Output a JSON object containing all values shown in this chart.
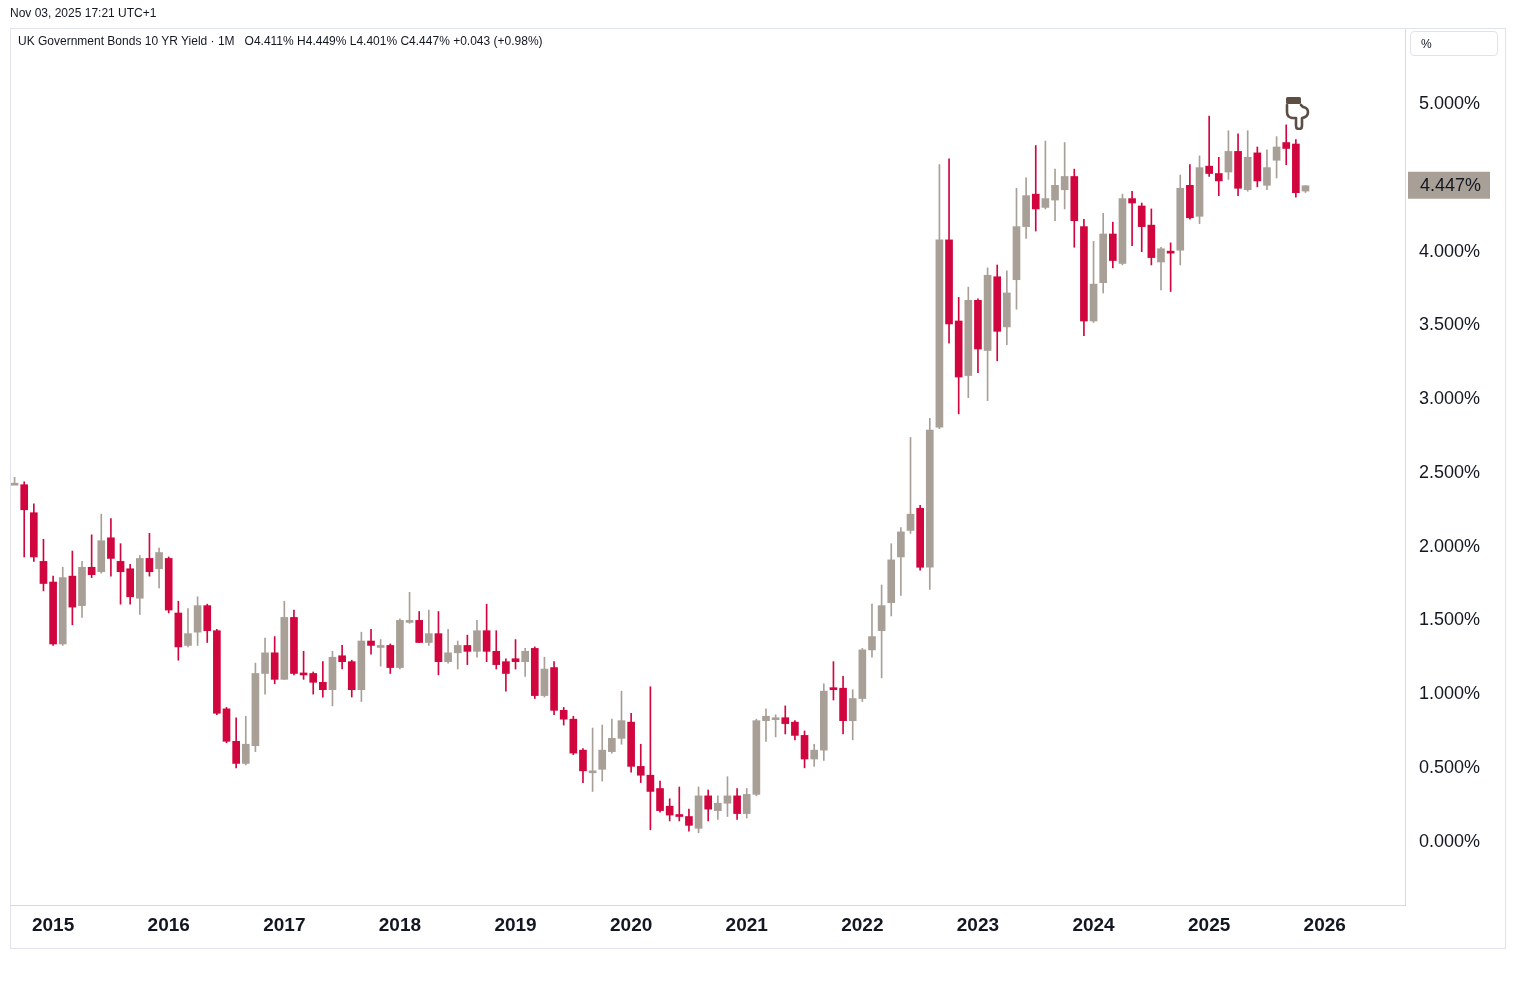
{
  "chart_data": {
    "type": "candlestick",
    "title": "UK Government Bonds 10 YR Yield · 1M",
    "ylabel": "%",
    "annotations": [
      "Nov 03, 2025 17:21 UTC+1",
      "O4.411% H4.449% L4.401% C4.447% +0.043 (+0.98%)",
      "4.447%"
    ],
    "x": [
      "2014-09",
      "2014-10",
      "2014-11",
      "2014-12",
      "2015-01",
      "2015-02",
      "2015-03",
      "2015-04",
      "2015-05",
      "2015-06",
      "2015-07",
      "2015-08",
      "2015-09",
      "2015-10",
      "2015-11",
      "2015-12",
      "2016-01",
      "2016-02",
      "2016-03",
      "2016-04",
      "2016-05",
      "2016-06",
      "2016-07",
      "2016-08",
      "2016-09",
      "2016-10",
      "2016-11",
      "2016-12",
      "2017-01",
      "2017-02",
      "2017-03",
      "2017-04",
      "2017-05",
      "2017-06",
      "2017-07",
      "2017-08",
      "2017-09",
      "2017-10",
      "2017-11",
      "2017-12",
      "2018-01",
      "2018-02",
      "2018-03",
      "2018-04",
      "2018-05",
      "2018-06",
      "2018-07",
      "2018-08",
      "2018-09",
      "2018-10",
      "2018-11",
      "2018-12",
      "2019-01",
      "2019-02",
      "2019-03",
      "2019-04",
      "2019-05",
      "2019-06",
      "2019-07",
      "2019-08",
      "2019-09",
      "2019-10",
      "2019-11",
      "2019-12",
      "2020-01",
      "2020-02",
      "2020-03",
      "2020-04",
      "2020-05",
      "2020-06",
      "2020-07",
      "2020-08",
      "2020-09",
      "2020-10",
      "2020-11",
      "2020-12",
      "2021-01",
      "2021-02",
      "2021-03",
      "2021-04",
      "2021-05",
      "2021-06",
      "2021-07",
      "2021-08",
      "2021-09",
      "2021-10",
      "2021-11",
      "2021-12",
      "2022-01",
      "2022-02",
      "2022-03",
      "2022-04",
      "2022-05",
      "2022-06",
      "2022-07",
      "2022-08",
      "2022-09",
      "2022-10",
      "2022-11",
      "2022-12",
      "2023-01",
      "2023-02",
      "2023-03",
      "2023-04",
      "2023-05",
      "2023-06",
      "2023-07",
      "2023-08",
      "2023-09",
      "2023-10",
      "2023-11",
      "2023-12",
      "2024-01",
      "2024-02",
      "2024-03",
      "2024-04",
      "2024-05",
      "2024-06",
      "2024-07",
      "2024-08",
      "2024-09",
      "2024-10",
      "2024-11",
      "2024-12",
      "2025-01",
      "2025-02",
      "2025-03",
      "2025-04",
      "2025-05",
      "2025-06",
      "2025-07",
      "2025-08",
      "2025-09",
      "2025-10",
      "2025-11"
    ],
    "ohlc": [
      [
        2.43,
        2.47,
        2.43,
        2.43
      ],
      [
        2.42,
        2.44,
        1.93,
        2.25
      ],
      [
        2.23,
        2.29,
        1.9,
        1.93
      ],
      [
        1.9,
        2.05,
        1.7,
        1.75
      ],
      [
        1.76,
        1.8,
        1.33,
        1.34
      ],
      [
        1.34,
        1.86,
        1.33,
        1.79
      ],
      [
        1.8,
        1.97,
        1.47,
        1.59
      ],
      [
        1.6,
        1.9,
        1.52,
        1.86
      ],
      [
        1.86,
        2.08,
        1.79,
        1.81
      ],
      [
        1.83,
        2.22,
        1.82,
        2.04
      ],
      [
        2.06,
        2.19,
        1.8,
        1.92
      ],
      [
        1.9,
        2.02,
        1.61,
        1.83
      ],
      [
        1.85,
        1.88,
        1.61,
        1.66
      ],
      [
        1.65,
        1.94,
        1.54,
        1.92
      ],
      [
        1.92,
        2.09,
        1.8,
        1.83
      ],
      [
        1.85,
        1.99,
        1.72,
        1.96
      ],
      [
        1.92,
        1.93,
        1.55,
        1.57
      ],
      [
        1.55,
        1.63,
        1.23,
        1.32
      ],
      [
        1.33,
        1.58,
        1.32,
        1.41
      ],
      [
        1.42,
        1.66,
        1.33,
        1.6
      ],
      [
        1.6,
        1.61,
        1.35,
        1.43
      ],
      [
        1.43,
        1.44,
        0.86,
        0.87
      ],
      [
        0.9,
        0.91,
        0.67,
        0.68
      ],
      [
        0.68,
        0.84,
        0.5,
        0.53
      ],
      [
        0.53,
        0.85,
        0.52,
        0.66
      ],
      [
        0.65,
        1.21,
        0.61,
        1.14
      ],
      [
        1.14,
        1.38,
        1.0,
        1.28
      ],
      [
        1.28,
        1.39,
        1.07,
        1.1
      ],
      [
        1.1,
        1.63,
        1.1,
        1.52
      ],
      [
        1.52,
        1.57,
        1.13,
        1.14
      ],
      [
        1.14,
        1.29,
        1.1,
        1.13
      ],
      [
        1.14,
        1.15,
        1.0,
        1.08
      ],
      [
        1.08,
        1.22,
        0.98,
        1.03
      ],
      [
        1.03,
        1.29,
        0.92,
        1.25
      ],
      [
        1.26,
        1.33,
        1.17,
        1.22
      ],
      [
        1.22,
        1.23,
        0.98,
        1.03
      ],
      [
        1.03,
        1.42,
        0.95,
        1.36
      ],
      [
        1.36,
        1.44,
        1.27,
        1.33
      ],
      [
        1.33,
        1.37,
        1.19,
        1.33
      ],
      [
        1.33,
        1.34,
        1.14,
        1.18
      ],
      [
        1.18,
        1.51,
        1.17,
        1.5
      ],
      [
        1.5,
        1.69,
        1.48,
        1.5
      ],
      [
        1.5,
        1.56,
        1.35,
        1.35
      ],
      [
        1.35,
        1.57,
        1.33,
        1.41
      ],
      [
        1.41,
        1.56,
        1.13,
        1.22
      ],
      [
        1.22,
        1.44,
        1.21,
        1.28
      ],
      [
        1.28,
        1.36,
        1.17,
        1.33
      ],
      [
        1.33,
        1.4,
        1.2,
        1.29
      ],
      [
        1.29,
        1.5,
        1.25,
        1.43
      ],
      [
        1.43,
        1.61,
        1.22,
        1.29
      ],
      [
        1.29,
        1.43,
        1.17,
        1.2
      ],
      [
        1.22,
        1.24,
        1.02,
        1.14
      ],
      [
        1.24,
        1.37,
        1.17,
        1.22
      ],
      [
        1.22,
        1.31,
        1.12,
        1.29
      ],
      [
        1.31,
        1.32,
        0.97,
        0.99
      ],
      [
        0.99,
        1.25,
        0.98,
        1.17
      ],
      [
        1.18,
        1.22,
        0.86,
        0.89
      ],
      [
        0.89,
        0.91,
        0.79,
        0.83
      ],
      [
        0.83,
        0.85,
        0.59,
        0.6
      ],
      [
        0.62,
        0.63,
        0.4,
        0.48
      ],
      [
        0.48,
        0.77,
        0.34,
        0.48
      ],
      [
        0.49,
        0.79,
        0.41,
        0.62
      ],
      [
        0.61,
        0.83,
        0.6,
        0.7
      ],
      [
        0.7,
        1.02,
        0.66,
        0.82
      ],
      [
        0.81,
        0.87,
        0.47,
        0.51
      ],
      [
        0.51,
        0.66,
        0.4,
        0.45
      ],
      [
        0.45,
        1.05,
        0.08,
        0.34
      ],
      [
        0.36,
        0.41,
        0.2,
        0.21
      ],
      [
        0.24,
        0.29,
        0.14,
        0.18
      ],
      [
        0.18,
        0.37,
        0.14,
        0.17
      ],
      [
        0.17,
        0.22,
        0.07,
        0.11
      ],
      [
        0.09,
        0.37,
        0.06,
        0.31
      ],
      [
        0.31,
        0.35,
        0.14,
        0.22
      ],
      [
        0.21,
        0.31,
        0.15,
        0.26
      ],
      [
        0.26,
        0.44,
        0.17,
        0.31
      ],
      [
        0.31,
        0.36,
        0.15,
        0.19
      ],
      [
        0.19,
        0.36,
        0.16,
        0.32
      ],
      [
        0.32,
        0.83,
        0.31,
        0.82
      ],
      [
        0.82,
        0.9,
        0.68,
        0.85
      ],
      [
        0.84,
        0.86,
        0.71,
        0.84
      ],
      [
        0.84,
        0.92,
        0.73,
        0.8
      ],
      [
        0.81,
        0.82,
        0.69,
        0.72
      ],
      [
        0.72,
        0.75,
        0.5,
        0.56
      ],
      [
        0.56,
        0.66,
        0.51,
        0.62
      ],
      [
        0.62,
        1.07,
        0.55,
        1.02
      ],
      [
        1.04,
        1.22,
        0.96,
        1.03
      ],
      [
        1.04,
        1.12,
        0.73,
        0.82
      ],
      [
        0.82,
        1.03,
        0.69,
        0.97
      ],
      [
        0.97,
        1.31,
        0.95,
        1.3
      ],
      [
        1.3,
        1.61,
        1.25,
        1.39
      ],
      [
        1.43,
        1.74,
        1.11,
        1.6
      ],
      [
        1.62,
        2.02,
        1.53,
        1.91
      ],
      [
        1.93,
        2.13,
        1.67,
        2.1
      ],
      [
        2.11,
        2.74,
        2.09,
        2.22
      ],
      [
        2.26,
        2.28,
        1.84,
        1.86
      ],
      [
        1.86,
        2.87,
        1.71,
        2.79
      ],
      [
        2.81,
        4.59,
        2.8,
        4.08
      ],
      [
        4.08,
        4.63,
        3.38,
        3.51
      ],
      [
        3.53,
        3.69,
        2.9,
        3.15
      ],
      [
        3.16,
        3.76,
        3.01,
        3.67
      ],
      [
        3.67,
        3.68,
        3.18,
        3.34
      ],
      [
        3.33,
        3.89,
        2.99,
        3.84
      ],
      [
        3.83,
        3.91,
        3.26,
        3.46
      ],
      [
        3.49,
        3.87,
        3.37,
        3.72
      ],
      [
        3.81,
        4.43,
        3.61,
        4.17
      ],
      [
        4.17,
        4.5,
        4.09,
        4.38
      ],
      [
        4.39,
        4.72,
        4.14,
        4.29
      ],
      [
        4.3,
        4.75,
        4.29,
        4.36
      ],
      [
        4.35,
        4.56,
        4.21,
        4.45
      ],
      [
        4.42,
        4.74,
        4.29,
        4.51
      ],
      [
        4.51,
        4.56,
        4.03,
        4.21
      ],
      [
        4.17,
        4.22,
        3.43,
        3.53
      ],
      [
        3.53,
        4.07,
        3.52,
        3.78
      ],
      [
        3.79,
        4.26,
        3.72,
        4.12
      ],
      [
        4.12,
        4.2,
        3.89,
        3.94
      ],
      [
        3.92,
        4.39,
        3.91,
        4.36
      ],
      [
        4.36,
        4.41,
        4.04,
        4.33
      ],
      [
        4.31,
        4.33,
        4.0,
        4.17
      ],
      [
        4.18,
        4.29,
        3.91,
        3.96
      ],
      [
        3.93,
        4.03,
        3.74,
        4.02
      ],
      [
        4.0,
        4.06,
        3.73,
        3.99
      ],
      [
        4.01,
        4.52,
        3.91,
        4.43
      ],
      [
        4.45,
        4.59,
        4.22,
        4.23
      ],
      [
        4.24,
        4.65,
        4.19,
        4.57
      ],
      [
        4.58,
        4.92,
        4.51,
        4.53
      ],
      [
        4.53,
        4.64,
        4.38,
        4.48
      ],
      [
        4.54,
        4.82,
        4.49,
        4.68
      ],
      [
        4.68,
        4.8,
        4.38,
        4.43
      ],
      [
        4.42,
        4.82,
        4.41,
        4.64
      ],
      [
        4.67,
        4.71,
        4.44,
        4.48
      ],
      [
        4.45,
        4.69,
        4.42,
        4.57
      ],
      [
        4.62,
        4.78,
        4.5,
        4.71
      ],
      [
        4.74,
        4.86,
        4.59,
        4.7
      ],
      [
        4.73,
        4.76,
        4.37,
        4.4
      ],
      [
        4.411,
        4.449,
        4.401,
        4.447
      ]
    ],
    "colors": [
      "#a8a097",
      "#d1063f",
      "#d1063f",
      "#d1063f",
      "#d1063f",
      "#a8a097",
      "#d1063f",
      "#a8a097",
      "#d1063f",
      "#a8a097",
      "#d1063f",
      "#d1063f",
      "#d1063f",
      "#a8a097",
      "#d1063f",
      "#a8a097",
      "#d1063f",
      "#d1063f",
      "#a8a097",
      "#a8a097",
      "#d1063f",
      "#d1063f",
      "#d1063f",
      "#d1063f",
      "#a8a097",
      "#a8a097",
      "#a8a097",
      "#d1063f",
      "#a8a097",
      "#d1063f",
      "#d1063f",
      "#d1063f",
      "#d1063f",
      "#a8a097",
      "#d1063f",
      "#d1063f",
      "#a8a097",
      "#d1063f",
      "#a8a097",
      "#d1063f",
      "#a8a097",
      "#a8a097",
      "#d1063f",
      "#a8a097",
      "#d1063f",
      "#a8a097",
      "#a8a097",
      "#d1063f",
      "#a8a097",
      "#d1063f",
      "#d1063f",
      "#d1063f",
      "#d1063f",
      "#a8a097",
      "#d1063f",
      "#a8a097",
      "#d1063f",
      "#d1063f",
      "#d1063f",
      "#d1063f",
      "#a8a097",
      "#a8a097",
      "#a8a097",
      "#a8a097",
      "#d1063f",
      "#d1063f",
      "#d1063f",
      "#d1063f",
      "#d1063f",
      "#d1063f",
      "#d1063f",
      "#a8a097",
      "#d1063f",
      "#a8a097",
      "#a8a097",
      "#d1063f",
      "#a8a097",
      "#a8a097",
      "#a8a097",
      "#a8a097",
      "#d1063f",
      "#d1063f",
      "#d1063f",
      "#a8a097",
      "#a8a097",
      "#d1063f",
      "#d1063f",
      "#a8a097",
      "#a8a097",
      "#a8a097",
      "#a8a097",
      "#a8a097",
      "#a8a097",
      "#a8a097",
      "#d1063f",
      "#a8a097",
      "#a8a097",
      "#d1063f",
      "#d1063f",
      "#a8a097",
      "#d1063f",
      "#a8a097",
      "#d1063f",
      "#a8a097",
      "#a8a097",
      "#a8a097",
      "#d1063f",
      "#a8a097",
      "#a8a097",
      "#a8a097",
      "#d1063f",
      "#d1063f",
      "#a8a097",
      "#a8a097",
      "#d1063f",
      "#a8a097",
      "#d1063f",
      "#d1063f",
      "#d1063f",
      "#a8a097",
      "#d1063f",
      "#a8a097",
      "#d1063f",
      "#a8a097",
      "#d1063f",
      "#d1063f",
      "#a8a097",
      "#d1063f",
      "#a8a097",
      "#d1063f",
      "#a8a097",
      "#a8a097",
      "#d1063f",
      "#d1063f",
      "#a8a097"
    ],
    "xlim": [
      "2014-08-17",
      "2026-09-11"
    ],
    "xticks": [
      "2015",
      "2016",
      "2017",
      "2018",
      "2019",
      "2020",
      "2021",
      "2022",
      "2023",
      "2024",
      "2025",
      "2026"
    ],
    "ylim": [
      -0.43,
      5.51
    ],
    "yticks": [
      {
        "value": 0,
        "label": "0.000%"
      },
      {
        "value": 0.5,
        "label": "0.500%"
      },
      {
        "value": 1,
        "label": "1.000%"
      },
      {
        "value": 1.5,
        "label": "1.500%"
      },
      {
        "value": 2,
        "label": "2.000%"
      },
      {
        "value": 2.5,
        "label": "2.500%"
      },
      {
        "value": 3,
        "label": "3.000%"
      },
      {
        "value": 3.5,
        "label": "3.500%"
      },
      {
        "value": 4,
        "label": "4.000%"
      },
      {
        "value": 5,
        "label": "5.000%"
      }
    ],
    "grid": false,
    "legend": false
  }
}
